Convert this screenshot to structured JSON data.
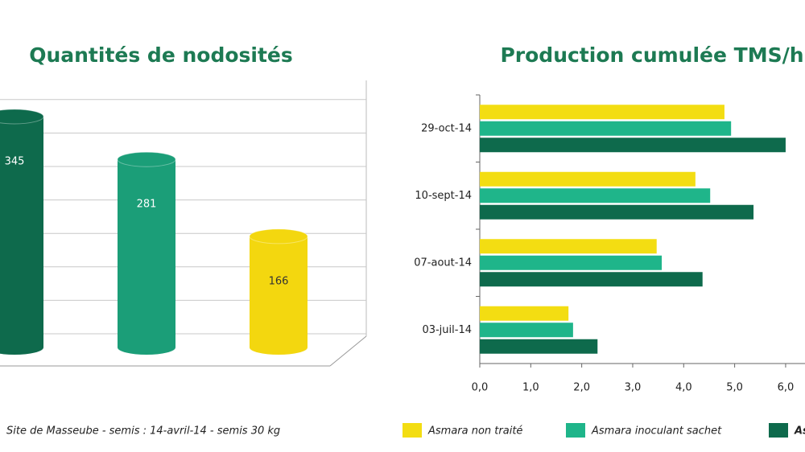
{
  "chart_data": [
    {
      "type": "cylinder",
      "title": "Quantités de nodosités",
      "values": [
        345,
        281,
        166
      ],
      "value_labels": [
        "345",
        "281",
        "166"
      ],
      "colors": [
        "#0e6a4c",
        "#1b9e78",
        "#f3d70f"
      ],
      "ylim": [
        0,
        375
      ],
      "yticks": [
        0,
        50,
        100,
        150,
        200,
        250,
        300,
        350
      ],
      "grid": true,
      "note": "Site de Masseube - semis : 14-avril-14 - semis 30 kg"
    },
    {
      "type": "hbar",
      "title": "Production cumulée TMS/h",
      "categories": [
        "29-oct-14",
        "10-sept-14",
        "07-aout-14",
        "03-juil-14"
      ],
      "series": [
        {
          "name": "Asmara non traité",
          "color": "#f3dd12",
          "values": [
            4.8,
            4.23,
            3.47,
            1.74
          ]
        },
        {
          "name": "Asmara inoculant sachet",
          "color": "#1fb58a",
          "values": [
            4.93,
            4.52,
            3.57,
            1.83
          ]
        },
        {
          "name": "As",
          "color": "#0e6a4c",
          "values": [
            6.0,
            5.37,
            4.37,
            2.31
          ]
        }
      ],
      "xlim": [
        0,
        6.38
      ],
      "xticks": [
        {
          "value": 0,
          "label": "0,0"
        },
        {
          "value": 1,
          "label": "1,0"
        },
        {
          "value": 2,
          "label": "2,0"
        },
        {
          "value": 3,
          "label": "3,0"
        },
        {
          "value": 4,
          "label": "4,0"
        },
        {
          "value": 5,
          "label": "5,0"
        },
        {
          "value": 6,
          "label": "6,0"
        }
      ]
    }
  ]
}
